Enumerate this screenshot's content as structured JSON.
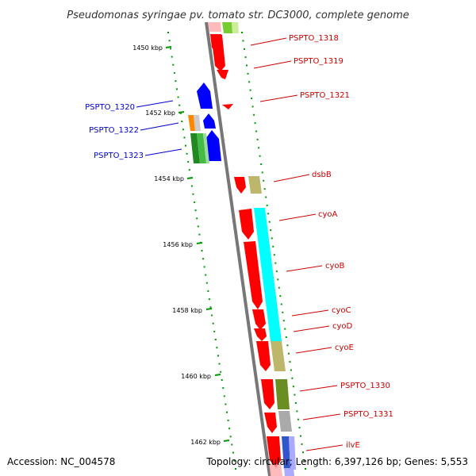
{
  "header": {
    "title": "Pseudomonas syringae pv. tomato str. DC3000, complete genome"
  },
  "footer": {
    "accession": "Accession: NC_004578",
    "topology": "Topology: circular; Length: 6,397,126 bp; Genes: 5,553"
  },
  "map": {
    "kbp_ticks": [
      {
        "label": "1450 kbp"
      },
      {
        "label": "1452 kbp"
      },
      {
        "label": "1454 kbp"
      },
      {
        "label": "1456 kbp"
      },
      {
        "label": "1458 kbp"
      },
      {
        "label": "1460 kbp"
      },
      {
        "label": "1462 kbp"
      }
    ],
    "genes_right": [
      {
        "name": "PSPTO_1318",
        "color": "#cc0000"
      },
      {
        "name": "PSPTO_1319",
        "color": "#cc0000"
      },
      {
        "name": "PSPTO_1321",
        "color": "#cc0000"
      },
      {
        "name": "dsbB",
        "color": "#cc0000"
      },
      {
        "name": "cyoA",
        "color": "#cc0000"
      },
      {
        "name": "cyoB",
        "color": "#cc0000"
      },
      {
        "name": "cyoC",
        "color": "#cc0000"
      },
      {
        "name": "cyoD",
        "color": "#cc0000"
      },
      {
        "name": "cyoE",
        "color": "#cc0000"
      },
      {
        "name": "PSPTO_1330",
        "color": "#cc0000"
      },
      {
        "name": "PSPTO_1331",
        "color": "#cc0000"
      },
      {
        "name": "ilvE",
        "color": "#cc0000"
      }
    ],
    "genes_left": [
      {
        "name": "PSPTO_1320",
        "color": "#0000cc"
      },
      {
        "name": "PSPTO_1322",
        "color": "#0000cc"
      },
      {
        "name": "PSPTO_1323",
        "color": "#0000cc"
      }
    ],
    "colors": {
      "backbone": "#777777",
      "forward_gene": "#ff0000",
      "reverse_gene": "#0000ff",
      "tick_green": "#009900",
      "cyan_block": "#00ffff",
      "khaki_block": "#bdb76b",
      "olive_block": "#6b8e23",
      "gray_block": "#aaaaaa",
      "green_block": "#33aa33",
      "orange_block": "#ff8800"
    }
  }
}
